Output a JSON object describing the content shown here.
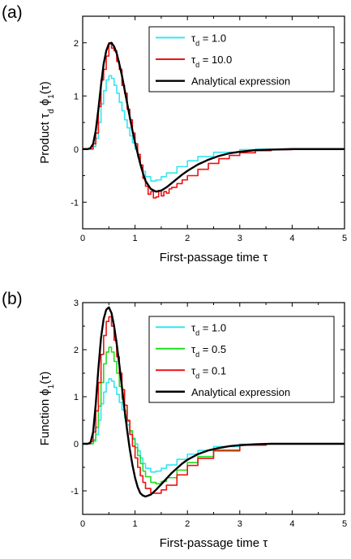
{
  "chart_data": [
    {
      "panel": "(a)",
      "type": "line",
      "xlabel": "First-passage time  τ",
      "ylabel": "Product  τd  ϕ1(τ)",
      "xlim": [
        0,
        5
      ],
      "ylim": [
        -1.5,
        2.5
      ],
      "xticks": [
        "0",
        "1",
        "2",
        "3",
        "4",
        "5"
      ],
      "yticks": [
        "-1",
        "0",
        "1",
        "2"
      ],
      "legend_position": "top-right",
      "series": [
        {
          "name": "τd = 1.0",
          "color": "#33e6f2",
          "style": "step",
          "x": [
            0,
            0.1,
            0.2,
            0.25,
            0.3,
            0.35,
            0.4,
            0.45,
            0.5,
            0.55,
            0.6,
            0.65,
            0.7,
            0.75,
            0.8,
            0.85,
            0.9,
            0.95,
            1.0,
            1.05,
            1.1,
            1.15,
            1.2,
            1.3,
            1.4,
            1.5,
            1.6,
            1.8,
            2.0,
            2.2,
            2.5,
            3.0,
            3.3,
            3.5,
            4.0,
            5.0
          ],
          "y": [
            0,
            0,
            0.05,
            0.2,
            0.5,
            0.85,
            1.1,
            1.3,
            1.38,
            1.33,
            1.2,
            1.05,
            0.88,
            0.72,
            0.55,
            0.4,
            0.25,
            0.12,
            0,
            -0.15,
            -0.3,
            -0.42,
            -0.52,
            -0.6,
            -0.58,
            -0.52,
            -0.45,
            -0.33,
            -0.22,
            -0.14,
            -0.06,
            -0.01,
            0,
            0,
            0,
            0
          ]
        },
        {
          "name": "τd = 10.0",
          "color": "#ee1111",
          "style": "step",
          "x": [
            0,
            0.15,
            0.2,
            0.25,
            0.3,
            0.35,
            0.4,
            0.45,
            0.5,
            0.55,
            0.6,
            0.65,
            0.7,
            0.75,
            0.8,
            0.85,
            0.9,
            0.95,
            1.0,
            1.05,
            1.1,
            1.15,
            1.2,
            1.25,
            1.3,
            1.35,
            1.4,
            1.45,
            1.5,
            1.55,
            1.6,
            1.65,
            1.7,
            1.8,
            1.9,
            2.0,
            2.2,
            2.4,
            2.6,
            2.8,
            3.0,
            3.3,
            3.6,
            4.0,
            5.0
          ],
          "y": [
            0,
            0,
            0.1,
            0.3,
            0.8,
            1.3,
            1.5,
            1.75,
            2.0,
            1.9,
            1.85,
            1.65,
            1.5,
            1.2,
            1.05,
            0.75,
            0.55,
            0.3,
            0.1,
            -0.1,
            -0.3,
            -0.55,
            -0.7,
            -0.85,
            -0.8,
            -0.92,
            -0.9,
            -0.78,
            -0.88,
            -0.8,
            -0.83,
            -0.75,
            -0.72,
            -0.65,
            -0.58,
            -0.5,
            -0.38,
            -0.27,
            -0.18,
            -0.12,
            -0.07,
            -0.03,
            -0.01,
            0,
            0
          ]
        },
        {
          "name": "Analytical expression",
          "color": "#000000",
          "style": "smooth",
          "x": [
            0,
            0.1,
            0.15,
            0.2,
            0.25,
            0.3,
            0.35,
            0.4,
            0.45,
            0.5,
            0.55,
            0.6,
            0.65,
            0.7,
            0.75,
            0.8,
            0.85,
            0.9,
            0.95,
            1.0,
            1.05,
            1.1,
            1.15,
            1.2,
            1.3,
            1.4,
            1.5,
            1.6,
            1.7,
            1.8,
            1.9,
            2.0,
            2.2,
            2.4,
            2.6,
            2.8,
            3.0,
            3.3,
            3.6,
            4.0,
            4.5,
            5.0
          ],
          "y": [
            0,
            0,
            0.02,
            0.1,
            0.35,
            0.75,
            1.2,
            1.6,
            1.85,
            1.98,
            2.0,
            1.93,
            1.8,
            1.6,
            1.38,
            1.12,
            0.86,
            0.6,
            0.35,
            0.12,
            -0.08,
            -0.28,
            -0.45,
            -0.6,
            -0.75,
            -0.8,
            -0.78,
            -0.72,
            -0.64,
            -0.56,
            -0.48,
            -0.41,
            -0.29,
            -0.2,
            -0.13,
            -0.08,
            -0.05,
            -0.02,
            -0.01,
            0,
            0,
            0
          ]
        }
      ]
    },
    {
      "panel": "(b)",
      "type": "line",
      "xlabel": "First-passage time  τ",
      "ylabel": "Function  ϕ1(τ)",
      "xlim": [
        0,
        5
      ],
      "ylim": [
        -1.5,
        3
      ],
      "xticks": [
        "0",
        "1",
        "2",
        "3",
        "4",
        "5"
      ],
      "yticks": [
        "-1",
        "0",
        "1",
        "2",
        "3"
      ],
      "legend_position": "top-right",
      "series": [
        {
          "name": "τd = 1.0",
          "color": "#33e6f2",
          "style": "step",
          "x": [
            0,
            0.1,
            0.2,
            0.25,
            0.3,
            0.35,
            0.4,
            0.45,
            0.5,
            0.55,
            0.6,
            0.65,
            0.7,
            0.75,
            0.8,
            0.85,
            0.9,
            0.95,
            1.0,
            1.05,
            1.1,
            1.15,
            1.2,
            1.3,
            1.4,
            1.5,
            1.6,
            1.8,
            2.0,
            2.2,
            2.5,
            3.0,
            3.5,
            4.0,
            5.0
          ],
          "y": [
            0,
            0,
            0.05,
            0.2,
            0.5,
            0.85,
            1.1,
            1.3,
            1.38,
            1.33,
            1.2,
            1.05,
            0.88,
            0.72,
            0.55,
            0.4,
            0.25,
            0.12,
            0,
            -0.15,
            -0.3,
            -0.42,
            -0.52,
            -0.6,
            -0.58,
            -0.52,
            -0.45,
            -0.33,
            -0.22,
            -0.14,
            -0.06,
            -0.01,
            0,
            0,
            0
          ]
        },
        {
          "name": "τd = 0.5",
          "color": "#22dd22",
          "style": "step",
          "x": [
            0,
            0.1,
            0.2,
            0.25,
            0.3,
            0.35,
            0.4,
            0.45,
            0.5,
            0.55,
            0.6,
            0.65,
            0.7,
            0.75,
            0.8,
            0.85,
            0.9,
            0.95,
            1.0,
            1.05,
            1.1,
            1.15,
            1.2,
            1.3,
            1.4,
            1.5,
            1.6,
            1.8,
            2.0,
            2.2,
            2.5,
            3.0,
            3.5,
            4.0,
            5.0
          ],
          "y": [
            0,
            0,
            0.08,
            0.35,
            0.8,
            1.3,
            1.7,
            1.95,
            2.05,
            1.95,
            1.75,
            1.5,
            1.22,
            0.95,
            0.7,
            0.48,
            0.28,
            0.1,
            -0.08,
            -0.25,
            -0.42,
            -0.58,
            -0.7,
            -0.82,
            -0.85,
            -0.8,
            -0.72,
            -0.56,
            -0.4,
            -0.27,
            -0.13,
            -0.03,
            0,
            0,
            0
          ]
        },
        {
          "name": "τd = 0.1",
          "color": "#ee1111",
          "style": "step",
          "x": [
            0,
            0.1,
            0.15,
            0.2,
            0.25,
            0.3,
            0.35,
            0.4,
            0.45,
            0.5,
            0.55,
            0.6,
            0.65,
            0.7,
            0.75,
            0.8,
            0.85,
            0.9,
            0.95,
            1.0,
            1.05,
            1.1,
            1.15,
            1.2,
            1.3,
            1.4,
            1.5,
            1.6,
            1.8,
            2.0,
            2.2,
            2.5,
            3.0,
            3.5,
            4.0,
            5.0
          ],
          "y": [
            0,
            0,
            0.05,
            0.25,
            0.7,
            1.3,
            1.9,
            2.3,
            2.6,
            2.7,
            2.5,
            2.2,
            1.85,
            1.5,
            1.15,
            0.82,
            0.5,
            0.2,
            -0.05,
            -0.3,
            -0.5,
            -0.68,
            -0.82,
            -0.95,
            -1.05,
            -1.05,
            -0.98,
            -0.88,
            -0.66,
            -0.46,
            -0.31,
            -0.15,
            -0.03,
            0,
            0,
            0
          ]
        },
        {
          "name": "Analytical expression",
          "color": "#000000",
          "style": "smooth",
          "x": [
            0,
            0.1,
            0.15,
            0.2,
            0.25,
            0.3,
            0.35,
            0.4,
            0.45,
            0.5,
            0.55,
            0.6,
            0.65,
            0.7,
            0.75,
            0.8,
            0.85,
            0.9,
            0.95,
            1.0,
            1.05,
            1.1,
            1.15,
            1.2,
            1.3,
            1.4,
            1.5,
            1.6,
            1.7,
            1.8,
            1.9,
            2.0,
            2.2,
            2.4,
            2.6,
            2.8,
            3.0,
            3.3,
            3.6,
            4.0,
            4.5,
            5.0
          ],
          "y": [
            0,
            0,
            0.03,
            0.25,
            0.85,
            1.6,
            2.25,
            2.65,
            2.85,
            2.9,
            2.78,
            2.5,
            2.12,
            1.68,
            1.2,
            0.72,
            0.28,
            -0.12,
            -0.45,
            -0.72,
            -0.92,
            -1.05,
            -1.1,
            -1.12,
            -1.08,
            -0.98,
            -0.86,
            -0.74,
            -0.62,
            -0.52,
            -0.42,
            -0.34,
            -0.22,
            -0.14,
            -0.09,
            -0.05,
            -0.03,
            -0.01,
            0,
            0,
            0,
            0
          ]
        }
      ]
    }
  ]
}
